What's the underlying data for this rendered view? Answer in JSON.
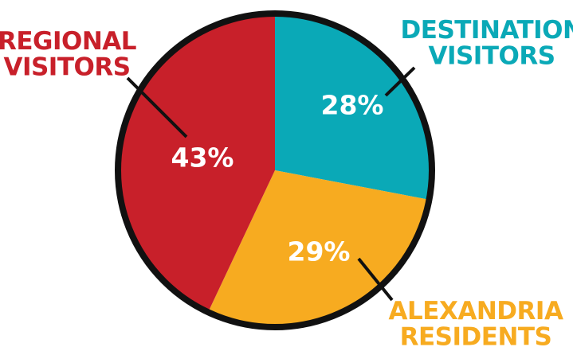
{
  "chart_data": {
    "type": "pie",
    "slices": [
      {
        "name_lines": [
          "DESTINATION",
          "VISITORS"
        ],
        "value": 28,
        "label": "28%",
        "color": "#0aa9b7"
      },
      {
        "name_lines": [
          "ALEXANDRIA",
          "RESIDENTS"
        ],
        "value": 29,
        "label": "29%",
        "color": "#f7ab20"
      },
      {
        "name_lines": [
          "REGIONAL",
          "VISITORS"
        ],
        "value": 43,
        "label": "43%",
        "color": "#c8202a"
      }
    ],
    "outline_color": "#111111",
    "label_colors": [
      "#0aa9b7",
      "#f7ab20",
      "#c8202a"
    ]
  }
}
